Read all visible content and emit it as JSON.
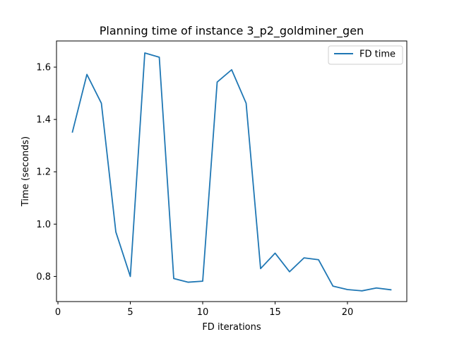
{
  "chart_data": {
    "type": "line",
    "title": "Planning time of instance 3_p2_goldminer_gen",
    "xlabel": "FD iterations",
    "ylabel": "Time (seconds)",
    "xlim": [
      -0.1,
      24.1
    ],
    "ylim": [
      0.704,
      1.7
    ],
    "xticks": [
      0,
      5,
      10,
      15,
      20
    ],
    "yticks": [
      0.8,
      1.0,
      1.2,
      1.4,
      1.6
    ],
    "ytick_labels": [
      "0.8",
      "1.0",
      "1.2",
      "1.4",
      "1.6"
    ],
    "grid": false,
    "legend_position": "upper right",
    "series": [
      {
        "name": "FD time",
        "color": "#1f77b4",
        "x": [
          1,
          2,
          3,
          4,
          5,
          6,
          7,
          8,
          9,
          10,
          11,
          12,
          13,
          14,
          15,
          16,
          17,
          18,
          19,
          20,
          21,
          22,
          23
        ],
        "y": [
          1.352,
          1.572,
          1.462,
          0.97,
          0.8,
          1.654,
          1.638,
          0.792,
          0.778,
          0.782,
          1.543,
          1.59,
          1.462,
          0.83,
          0.889,
          0.818,
          0.871,
          0.864,
          0.763,
          0.75,
          0.745,
          0.756,
          0.749
        ]
      }
    ]
  }
}
